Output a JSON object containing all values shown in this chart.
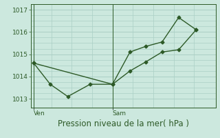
{
  "xlabel": "Pression niveau de la mer( hPa )",
  "background_color": "#cce8de",
  "plot_bg_color": "#cce8de",
  "grid_color": "#aacfc5",
  "line_color": "#2d5a27",
  "ylim": [
    1012.6,
    1017.25
  ],
  "xlim": [
    0,
    9.5
  ],
  "yticks": [
    1013,
    1014,
    1015,
    1016,
    1017
  ],
  "xtick_positions": [
    0.15,
    4.2
  ],
  "day_labels": [
    "Ven",
    "Sam"
  ],
  "day_line_x": [
    0.15,
    4.2
  ],
  "series1_x": [
    0.15,
    1.0,
    1.9,
    3.05,
    4.2,
    5.1,
    5.9,
    6.75,
    7.6,
    8.5
  ],
  "series1_y": [
    1014.6,
    1013.65,
    1013.1,
    1013.65,
    1013.65,
    1015.1,
    1015.35,
    1015.55,
    1016.65,
    1016.1
  ],
  "series2_x": [
    0.15,
    4.2,
    5.1,
    5.9,
    6.75,
    7.6,
    8.5
  ],
  "series2_y": [
    1014.6,
    1013.65,
    1014.25,
    1014.65,
    1015.1,
    1015.2,
    1016.1
  ],
  "marker_size": 2.5,
  "line_width": 1.0,
  "font_size_tick": 6.5,
  "font_size_label": 8.5,
  "minor_grid_x_positions": [
    1.05,
    2.1,
    3.15,
    5.25,
    6.3,
    7.35,
    8.4
  ],
  "minor_grid_y_positions": [
    1013.25,
    1013.5,
    1013.75,
    1014.25,
    1014.5,
    1014.75,
    1015.25,
    1015.5,
    1015.75,
    1016.25,
    1016.5,
    1016.75
  ]
}
